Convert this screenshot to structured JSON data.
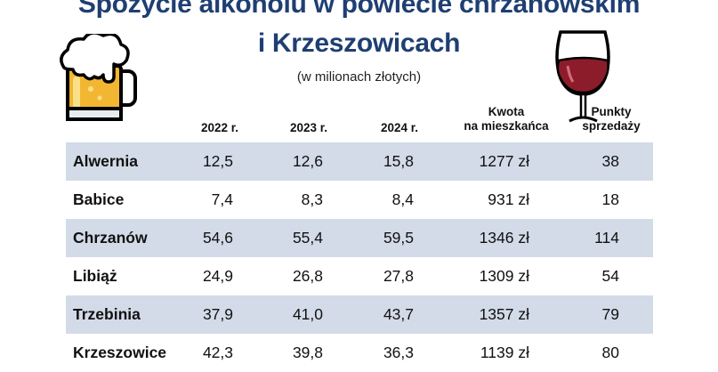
{
  "header": {
    "title_line1": "Spożycie alkoholu w powiecie chrzanowskim",
    "title_line2": "i Krzeszowicach",
    "subtitle": "(w milionach złotych)"
  },
  "icons": {
    "beer": "beer-mug-icon",
    "wine": "wine-glass-icon"
  },
  "colors": {
    "title": "#1f3f72",
    "row_stripe": "#d3dbe8",
    "wine": "#8c1c2a",
    "beer": "#f2b632"
  },
  "chart_data": {
    "type": "table",
    "title": "Spożycie alkoholu w powiecie chrzanowskim i Krzeszowicach",
    "subtitle": "(w milionach złotych)",
    "columns": [
      "2022 r.",
      "2023 r.",
      "2024 r.",
      "Kwota na mieszkańca",
      "Punkty sprzedaży"
    ],
    "column_lines": [
      [
        "2022 r."
      ],
      [
        "2023 r."
      ],
      [
        "2024 r."
      ],
      [
        "Kwota",
        "na mieszkańca"
      ],
      [
        "Punkty",
        "sprzedaży"
      ]
    ],
    "rows": [
      {
        "name": "Alwernia",
        "cells": [
          "12,5",
          "12,6",
          "15,8",
          "1277 zł",
          "38"
        ]
      },
      {
        "name": "Babice",
        "cells": [
          "7,4",
          "8,3",
          "8,4",
          "931 zł",
          "18"
        ]
      },
      {
        "name": "Chrzanów",
        "cells": [
          "54,6",
          "55,4",
          "59,5",
          "1346 zł",
          "114"
        ]
      },
      {
        "name": "Libiąż",
        "cells": [
          "24,9",
          "26,8",
          "27,8",
          "1309 zł",
          "54"
        ]
      },
      {
        "name": "Trzebinia",
        "cells": [
          "37,9",
          "41,0",
          "43,7",
          "1357 zł",
          "79"
        ]
      },
      {
        "name": "Krzeszowice",
        "cells": [
          "42,3",
          "39,8",
          "36,3",
          "1139 zł",
          "80"
        ]
      }
    ]
  }
}
